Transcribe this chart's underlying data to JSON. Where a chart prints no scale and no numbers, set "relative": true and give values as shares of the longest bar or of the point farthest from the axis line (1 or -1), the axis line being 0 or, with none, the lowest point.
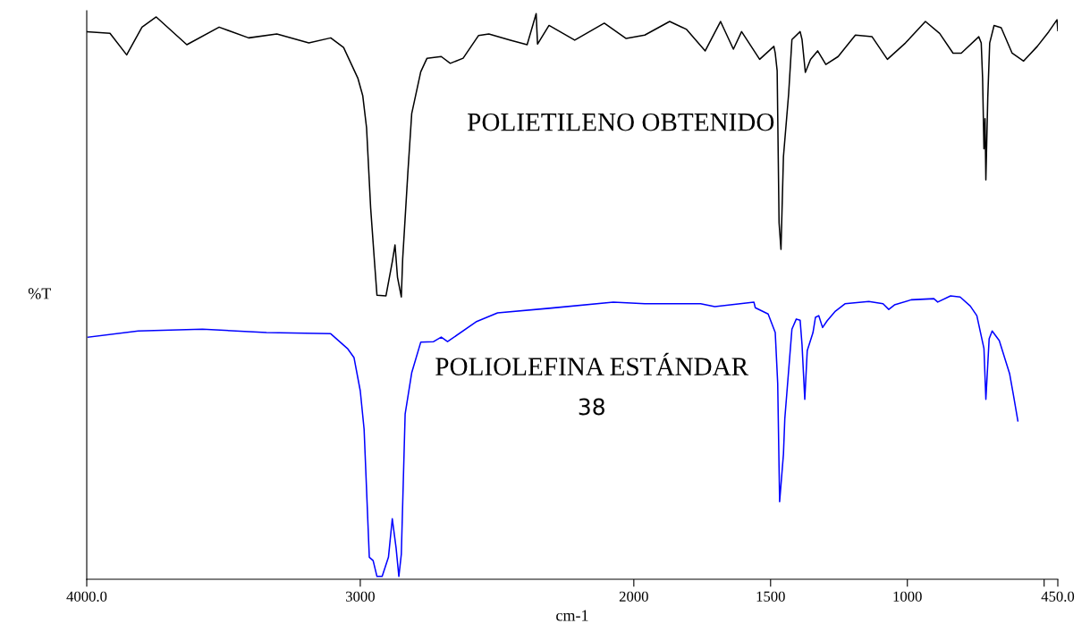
{
  "chart_data": {
    "type": "line",
    "relative": true,
    "xlabel": "cm-1",
    "ylabel": "%T",
    "tick_labels": "x",
    "grid": false,
    "legend": false,
    "xlim": [
      4000,
      450
    ],
    "xticks": [
      {
        "value": 4000,
        "label": "4000.0"
      },
      3000,
      2000,
      1500,
      1000,
      {
        "value": 500,
        "label": null
      },
      {
        "value": 450,
        "label": "450.0"
      }
    ],
    "annotations": [
      "38"
    ],
    "series": [
      {
        "name": "POLIETILENO OBTENIDO",
        "color": "#000000",
        "x": [
          4000,
          3915,
          3854,
          3798,
          3746,
          3634,
          3516,
          3408,
          3305,
          3188,
          3108,
          3061,
          3009,
          2991,
          2977,
          2962,
          2948,
          2939,
          2906,
          2883,
          2873,
          2864,
          2850,
          2845,
          2826,
          2812,
          2779,
          2756,
          2704,
          2671,
          2624,
          2568,
          2530,
          2451,
          2390,
          2357,
          2352,
          2310,
          2216,
          2108,
          2028,
          1960,
          1869,
          1807,
          1739,
          1683,
          1636,
          1606,
          1540,
          1488,
          1483,
          1476,
          1469,
          1462,
          1453,
          1434,
          1422,
          1392,
          1385,
          1373,
          1354,
          1328,
          1298,
          1253,
          1190,
          1129,
          1073,
          1007,
          934,
          882,
          833,
          803,
          739,
          730,
          725,
          720,
          716,
          713,
          706,
          699,
          683,
          657,
          617,
          575,
          525,
          483,
          453,
          450
        ],
        "values": [
          0.968,
          0.965,
          0.927,
          0.976,
          0.994,
          0.945,
          0.976,
          0.957,
          0.964,
          0.948,
          0.957,
          0.94,
          0.886,
          0.855,
          0.798,
          0.656,
          0.561,
          0.502,
          0.501,
          0.561,
          0.591,
          0.534,
          0.499,
          0.566,
          0.719,
          0.823,
          0.897,
          0.921,
          0.924,
          0.912,
          0.921,
          0.961,
          0.964,
          0.953,
          0.945,
          1.0,
          0.946,
          0.979,
          0.953,
          0.983,
          0.956,
          0.962,
          0.986,
          0.972,
          0.934,
          0.986,
          0.937,
          0.968,
          0.919,
          0.942,
          0.93,
          0.899,
          0.63,
          0.583,
          0.747,
          0.858,
          0.954,
          0.968,
          0.954,
          0.896,
          0.919,
          0.934,
          0.91,
          0.924,
          0.962,
          0.959,
          0.919,
          0.948,
          0.986,
          0.965,
          0.93,
          0.93,
          0.959,
          0.948,
          0.886,
          0.761,
          0.814,
          0.706,
          0.852,
          0.948,
          0.979,
          0.975,
          0.93,
          0.916,
          0.942,
          0.968,
          0.989,
          0.97
        ]
      },
      {
        "name": "POLIOLEFINA ESTÁNDAR",
        "color": "#0000ff",
        "x": [
          3995,
          3812,
          3577,
          3343,
          3108,
          3047,
          3023,
          3000,
          2986,
          2967,
          2953,
          2939,
          2920,
          2897,
          2883,
          2869,
          2859,
          2850,
          2836,
          2812,
          2779,
          2732,
          2704,
          2681,
          2577,
          2498,
          2310,
          2075,
          1960,
          1756,
          1704,
          1561,
          1556,
          1509,
          1483,
          1474,
          1467,
          1453,
          1448,
          1422,
          1406,
          1392,
          1385,
          1375,
          1366,
          1345,
          1336,
          1324,
          1310,
          1293,
          1263,
          1228,
          1141,
          1089,
          1068,
          1047,
          986,
          903,
          889,
          842,
          807,
          770,
          746,
          720,
          713,
          701,
          690,
          664,
          626,
          612,
          596
        ],
        "values": [
          0.428,
          0.439,
          0.442,
          0.436,
          0.434,
          0.408,
          0.392,
          0.333,
          0.265,
          0.039,
          0.033,
          0.005,
          0.005,
          0.039,
          0.107,
          0.055,
          0.005,
          0.044,
          0.292,
          0.365,
          0.419,
          0.42,
          0.428,
          0.42,
          0.455,
          0.471,
          0.479,
          0.49,
          0.487,
          0.487,
          0.482,
          0.49,
          0.48,
          0.469,
          0.436,
          0.346,
          0.137,
          0.221,
          0.284,
          0.442,
          0.46,
          0.458,
          0.414,
          0.318,
          0.404,
          0.436,
          0.463,
          0.466,
          0.445,
          0.457,
          0.474,
          0.487,
          0.491,
          0.487,
          0.477,
          0.485,
          0.494,
          0.496,
          0.49,
          0.501,
          0.499,
          0.483,
          0.466,
          0.408,
          0.318,
          0.425,
          0.439,
          0.422,
          0.363,
          0.325,
          0.28
        ]
      }
    ]
  }
}
